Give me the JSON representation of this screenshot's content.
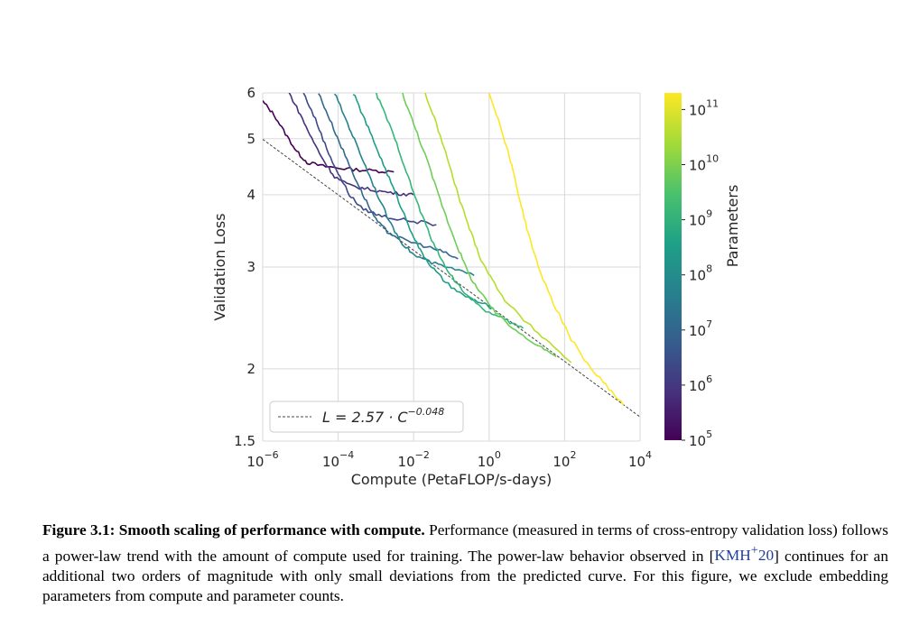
{
  "chart_data": {
    "type": "line",
    "xlabel": "Compute (PetaFLOP/s-days)",
    "ylabel": "Validation Loss",
    "x_scale": "log",
    "y_scale": "log",
    "xlim": [
      1e-06,
      10000.0
    ],
    "ylim": [
      1.5,
      6
    ],
    "x_ticks": [
      {
        "v": 1e-06,
        "base": "10",
        "exp": "−6"
      },
      {
        "v": 0.0001,
        "base": "10",
        "exp": "−4"
      },
      {
        "v": 0.01,
        "base": "10",
        "exp": "−2"
      },
      {
        "v": 1,
        "base": "10",
        "exp": "0"
      },
      {
        "v": 100.0,
        "base": "10",
        "exp": "2"
      },
      {
        "v": 10000.0,
        "base": "10",
        "exp": "4"
      }
    ],
    "y_ticks": [
      {
        "v": 1.5,
        "label": "1.5"
      },
      {
        "v": 2,
        "label": "2"
      },
      {
        "v": 3,
        "label": "3"
      },
      {
        "v": 4,
        "label": "4"
      },
      {
        "v": 5,
        "label": "5"
      },
      {
        "v": 6,
        "label": "6"
      }
    ],
    "grid": true,
    "legend_position": "lower-left",
    "fit_line": {
      "label": {
        "text": "L = 2.57 · C",
        "exp": "−0.048"
      },
      "a": 2.57,
      "b": -0.048,
      "x_range": [
        1e-06,
        10000.0
      ],
      "style": "dashed",
      "color": "#444444"
    },
    "colorbar": {
      "label": "Parameters",
      "scale": "log",
      "range": [
        100000.0,
        200000000000.0
      ],
      "colormap": "viridis",
      "ticks": [
        {
          "v": 100000.0,
          "base": "10",
          "exp": "5"
        },
        {
          "v": 1000000.0,
          "base": "10",
          "exp": "6"
        },
        {
          "v": 10000000.0,
          "base": "10",
          "exp": "7"
        },
        {
          "v": 100000000.0,
          "base": "10",
          "exp": "8"
        },
        {
          "v": 1000000000.0,
          "base": "10",
          "exp": "9"
        },
        {
          "v": 10000000000.0,
          "base": "10",
          "exp": "10"
        },
        {
          "v": 100000000000.0,
          "base": "10",
          "exp": "11"
        }
      ]
    },
    "series": [
      {
        "params": 120000.0,
        "color": "#440154",
        "points": [
          [
            1e-06,
            5.8
          ],
          [
            2e-06,
            5.5
          ],
          [
            4e-06,
            5.1
          ],
          [
            8e-06,
            4.75
          ],
          [
            1.5e-05,
            4.55
          ],
          [
            4e-05,
            4.48
          ],
          [
            0.0001,
            4.45
          ],
          [
            0.0003,
            4.42
          ],
          [
            0.001,
            4.4
          ],
          [
            0.003,
            4.38
          ]
        ]
      },
      {
        "params": 300000.0,
        "color": "#46327e",
        "points": [
          [
            5e-06,
            6.0
          ],
          [
            1e-05,
            5.5
          ],
          [
            2e-05,
            5.0
          ],
          [
            4e-05,
            4.6
          ],
          [
            8e-05,
            4.3
          ],
          [
            0.0002,
            4.15
          ],
          [
            0.0005,
            4.1
          ],
          [
            0.0015,
            4.05
          ],
          [
            0.004,
            4.02
          ],
          [
            0.01,
            4.0
          ]
        ]
      },
      {
        "params": 1000000.0,
        "color": "#3e4989",
        "points": [
          [
            1.2e-05,
            6.0
          ],
          [
            2.5e-05,
            5.4
          ],
          [
            5e-05,
            4.8
          ],
          [
            0.0001,
            4.35
          ],
          [
            0.0002,
            4.0
          ],
          [
            0.0004,
            3.8
          ],
          [
            0.001,
            3.7
          ],
          [
            0.003,
            3.64
          ],
          [
            0.01,
            3.6
          ],
          [
            0.04,
            3.55
          ]
        ]
      },
      {
        "params": 3000000.0,
        "color": "#31688e",
        "points": [
          [
            3e-05,
            6.0
          ],
          [
            6e-05,
            5.4
          ],
          [
            0.00012,
            4.85
          ],
          [
            0.00025,
            4.35
          ],
          [
            0.0005,
            3.95
          ],
          [
            0.001,
            3.62
          ],
          [
            0.002,
            3.45
          ],
          [
            0.005,
            3.35
          ],
          [
            0.015,
            3.28
          ],
          [
            0.05,
            3.2
          ],
          [
            0.15,
            3.1
          ]
        ]
      },
      {
        "params": 8000000.0,
        "color": "#26828e",
        "points": [
          [
            8e-05,
            6.0
          ],
          [
            0.00016,
            5.4
          ],
          [
            0.0003,
            4.9
          ],
          [
            0.0006,
            4.4
          ],
          [
            0.0012,
            3.95
          ],
          [
            0.0025,
            3.55
          ],
          [
            0.005,
            3.3
          ],
          [
            0.01,
            3.15
          ],
          [
            0.03,
            3.05
          ],
          [
            0.1,
            2.98
          ],
          [
            0.4,
            2.9
          ]
        ]
      },
      {
        "params": 20000000.0,
        "color": "#1f9e89",
        "points": [
          [
            0.00025,
            6.0
          ],
          [
            0.0005,
            5.4
          ],
          [
            0.001,
            4.85
          ],
          [
            0.002,
            4.35
          ],
          [
            0.004,
            3.9
          ],
          [
            0.008,
            3.5
          ],
          [
            0.015,
            3.2
          ],
          [
            0.03,
            3.0
          ],
          [
            0.07,
            2.82
          ],
          [
            0.2,
            2.68
          ],
          [
            0.6,
            2.6
          ],
          [
            1.2,
            2.55
          ]
        ]
      },
      {
        "params": 60000000.0,
        "color": "#35b779",
        "points": [
          [
            0.001,
            6.0
          ],
          [
            0.002,
            5.4
          ],
          [
            0.004,
            4.8
          ],
          [
            0.008,
            4.2
          ],
          [
            0.015,
            3.75
          ],
          [
            0.03,
            3.35
          ],
          [
            0.06,
            3.05
          ],
          [
            0.12,
            2.85
          ],
          [
            0.3,
            2.65
          ],
          [
            1,
            2.5
          ],
          [
            3,
            2.42
          ],
          [
            8,
            2.35
          ]
        ]
      },
      {
        "params": 200000000.0,
        "color": "#6ece58",
        "points": [
          [
            0.005,
            6.0
          ],
          [
            0.01,
            5.3
          ],
          [
            0.02,
            4.7
          ],
          [
            0.04,
            4.1
          ],
          [
            0.08,
            3.6
          ],
          [
            0.16,
            3.2
          ],
          [
            0.3,
            2.9
          ],
          [
            0.6,
            2.7
          ],
          [
            1.5,
            2.5
          ],
          [
            5,
            2.33
          ],
          [
            20,
            2.2
          ],
          [
            60,
            2.1
          ]
        ]
      },
      {
        "params": 800000000.0,
        "color": "#b5de2b",
        "points": [
          [
            0.02,
            6.0
          ],
          [
            0.04,
            5.3
          ],
          [
            0.08,
            4.6
          ],
          [
            0.15,
            4.0
          ],
          [
            0.3,
            3.5
          ],
          [
            0.6,
            3.1
          ],
          [
            1.2,
            2.85
          ],
          [
            3,
            2.6
          ],
          [
            10,
            2.4
          ],
          [
            40,
            2.22
          ],
          [
            150,
            2.05
          ]
        ]
      },
      {
        "params": 175000000000.0,
        "color": "#fde725",
        "points": [
          [
            1.0,
            6.0
          ],
          [
            1.6,
            5.5
          ],
          [
            2.5,
            5.0
          ],
          [
            4,
            4.5
          ],
          [
            6,
            4.0
          ],
          [
            10,
            3.5
          ],
          [
            20,
            3.0
          ],
          [
            50,
            2.6
          ],
          [
            150,
            2.25
          ],
          [
            500,
            2.0
          ],
          [
            1500,
            1.85
          ],
          [
            3600,
            1.73
          ]
        ]
      }
    ]
  },
  "caption": {
    "label": "Figure 3.1:",
    "title": "Smooth scaling of performance with compute.",
    "text_before_cite": "Performance (measured in terms of cross-entropy validation loss) follows a power-law trend with the amount of compute used for training. The power-law behavior observed in [",
    "cite_base": "KMH",
    "cite_sup": "+",
    "cite_year": "20",
    "text_after_cite": "] continues for an additional two orders of magnitude with only small deviations from the predicted curve. For this figure, we exclude embedding parameters from compute and parameter counts."
  }
}
